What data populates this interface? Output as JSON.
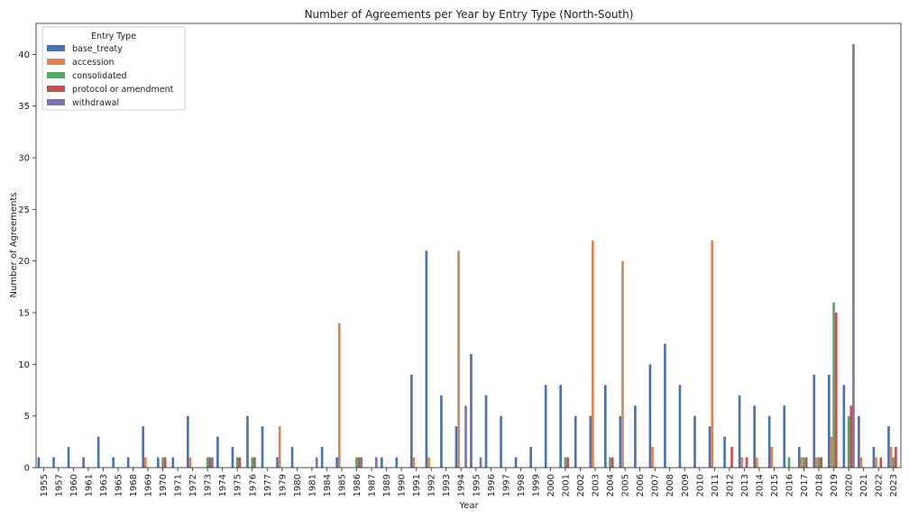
{
  "chart_data": {
    "type": "bar",
    "title": "Number of Agreements per Year by Entry Type (North-South)",
    "xlabel": "Year",
    "ylabel": "Number of Agreements",
    "ylim": [
      0,
      43
    ],
    "yticks": [
      0,
      5,
      10,
      15,
      20,
      25,
      30,
      35,
      40
    ],
    "grid": false,
    "legend": {
      "title": "Entry Type",
      "placement": "top-left"
    },
    "categories": [
      "1955",
      "1957",
      "1960",
      "1961",
      "1963",
      "1965",
      "1968",
      "1969",
      "1970",
      "1971",
      "1972",
      "1973",
      "1974",
      "1975",
      "1976",
      "1977",
      "1979",
      "1980",
      "1981",
      "1984",
      "1985",
      "1986",
      "1987",
      "1989",
      "1990",
      "1991",
      "1992",
      "1993",
      "1994",
      "1995",
      "1996",
      "1997",
      "1998",
      "1999",
      "2000",
      "2001",
      "2002",
      "2003",
      "2004",
      "2005",
      "2006",
      "2007",
      "2008",
      "2009",
      "2010",
      "2011",
      "2012",
      "2013",
      "2014",
      "2015",
      "2016",
      "2017",
      "2018",
      "2019",
      "2020",
      "2021",
      "2022",
      "2023"
    ],
    "series": [
      {
        "name": "base_treaty",
        "color": "#4c72b0",
        "values": [
          1,
          1,
          2,
          1,
          3,
          1,
          1,
          4,
          1,
          1,
          5,
          0,
          3,
          2,
          5,
          4,
          1,
          2,
          0,
          2,
          1,
          0,
          0,
          1,
          1,
          9,
          21,
          7,
          4,
          11,
          7,
          5,
          1,
          2,
          8,
          8,
          5,
          5,
          8,
          5,
          6,
          10,
          12,
          8,
          5,
          4,
          3,
          7,
          6,
          5,
          6,
          2,
          9,
          9,
          8,
          5,
          2,
          4
        ]
      },
      {
        "name": "accession",
        "color": "#dd8452",
        "values": [
          0,
          0,
          0,
          0,
          0,
          0,
          0,
          1,
          0,
          0,
          1,
          0,
          0,
          0,
          0,
          0,
          4,
          0,
          0,
          0,
          14,
          0,
          0,
          0,
          0,
          1,
          1,
          0,
          21,
          0,
          0,
          0,
          0,
          0,
          0,
          0,
          0,
          22,
          0,
          20,
          0,
          2,
          0,
          0,
          0,
          22,
          0,
          1,
          1,
          2,
          0,
          1,
          1,
          3,
          0,
          1,
          1,
          2
        ]
      },
      {
        "name": "consolidated",
        "color": "#55a868",
        "values": [
          0,
          0,
          0,
          0,
          0,
          0,
          0,
          0,
          1,
          0,
          0,
          1,
          0,
          1,
          1,
          0,
          0,
          0,
          0,
          0,
          0,
          1,
          0,
          0,
          0,
          0,
          0,
          0,
          0,
          0,
          0,
          0,
          0,
          0,
          0,
          1,
          0,
          0,
          1,
          0,
          0,
          0,
          0,
          0,
          0,
          0,
          0,
          0,
          0,
          0,
          1,
          1,
          1,
          16,
          5,
          0,
          0,
          1
        ]
      },
      {
        "name": "protocol or amendment",
        "color": "#c44e52",
        "values": [
          0,
          0,
          0,
          0,
          0,
          0,
          0,
          0,
          1,
          0,
          0,
          1,
          0,
          1,
          1,
          0,
          0,
          0,
          0,
          0,
          0,
          1,
          0,
          0,
          0,
          0,
          0,
          0,
          0,
          0,
          0,
          0,
          0,
          0,
          0,
          1,
          0,
          0,
          1,
          0,
          0,
          0,
          0,
          0,
          0,
          0,
          2,
          1,
          0,
          0,
          0,
          1,
          1,
          15,
          6,
          0,
          1,
          2
        ]
      },
      {
        "name": "withdrawal",
        "color": "#8172b3",
        "values": [
          0,
          0,
          0,
          0,
          0,
          0,
          0,
          0,
          0,
          0,
          0,
          1,
          0,
          0,
          0,
          0,
          0,
          0,
          1,
          0,
          0,
          1,
          1,
          0,
          0,
          0,
          0,
          0,
          6,
          1,
          0,
          0,
          0,
          0,
          0,
          0,
          0,
          0,
          0,
          0,
          0,
          0,
          0,
          0,
          0,
          0,
          0,
          0,
          0,
          0,
          0,
          0,
          0,
          0,
          41,
          0,
          0,
          0
        ]
      }
    ]
  }
}
